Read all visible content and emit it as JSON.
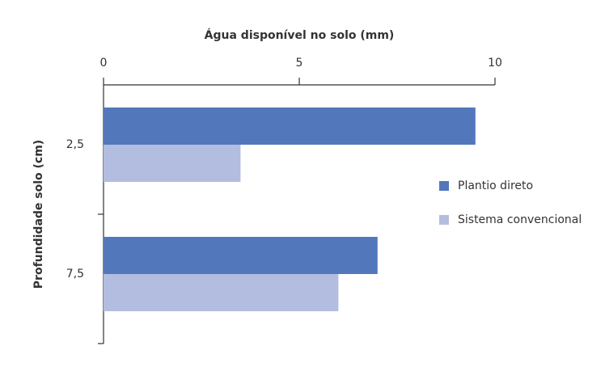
{
  "chart_data": {
    "type": "hbar",
    "title": "Água disponível no solo (mm)",
    "y_label": "Profundidade solo (cm)",
    "categories": [
      "2,5",
      "7,5"
    ],
    "series": [
      {
        "name": "Plantio direto",
        "color": "#5277bb",
        "values": [
          9.5,
          7.0
        ]
      },
      {
        "name": "Sistema convencional",
        "color": "#b3bde0",
        "values": [
          3.5,
          6.0
        ]
      }
    ],
    "xlim": [
      0,
      10
    ],
    "xticks": [
      0,
      5,
      10
    ],
    "legend": "right"
  }
}
